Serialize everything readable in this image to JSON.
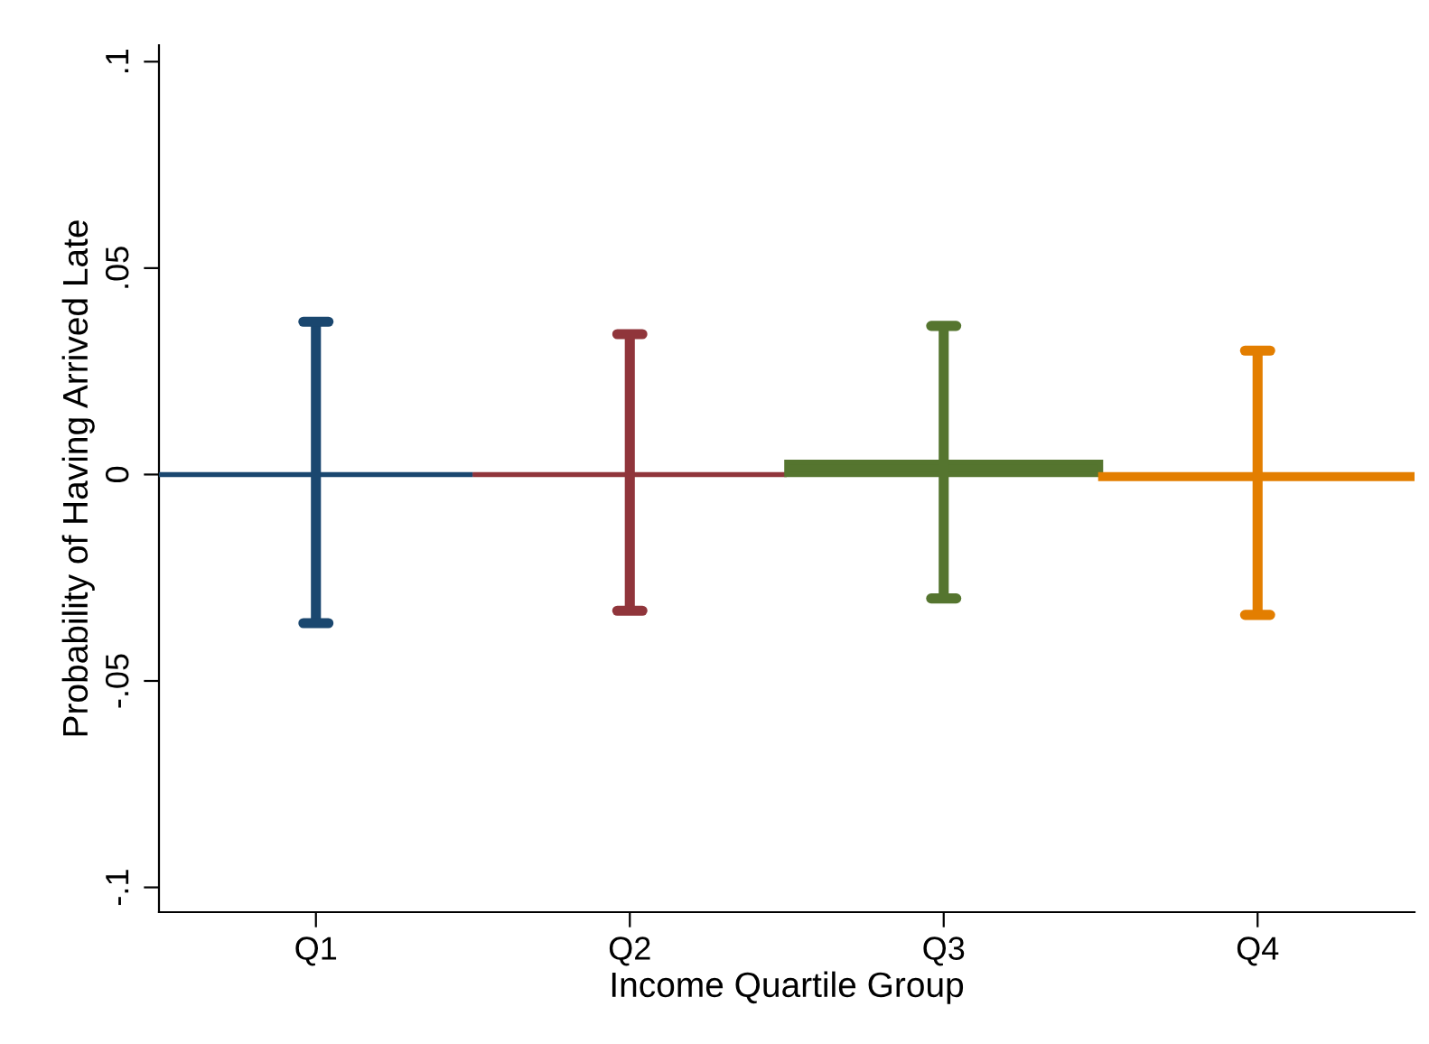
{
  "chart_data": {
    "type": "bar",
    "xlabel": "Income Quartile Group",
    "ylabel": "Probability of Having Arrived Late",
    "categories": [
      "Q1",
      "Q2",
      "Q3",
      "Q4"
    ],
    "values": [
      0.0,
      0.0,
      0.003,
      -0.001
    ],
    "colors": [
      "#1a476f",
      "#90353b",
      "#55752f",
      "#e37e00"
    ],
    "errors": [
      [
        -0.036,
        0.037
      ],
      [
        -0.033,
        0.034
      ],
      [
        -0.03,
        0.036
      ],
      [
        -0.034,
        0.03
      ]
    ],
    "ylim": [
      -0.106,
      0.104
    ],
    "yticks": [
      {
        "value": -0.1,
        "label": "-.1"
      },
      {
        "value": -0.05,
        "label": "-.05"
      },
      {
        "value": 0,
        "label": "0"
      },
      {
        "value": 0.05,
        "label": ".05"
      },
      {
        "value": 0.1,
        "label": ".1"
      }
    ],
    "ref_lines": [
      {
        "axis": "y",
        "value": 0,
        "label": null,
        "color": "#d3546b"
      }
    ],
    "grid": false,
    "legend": false
  }
}
